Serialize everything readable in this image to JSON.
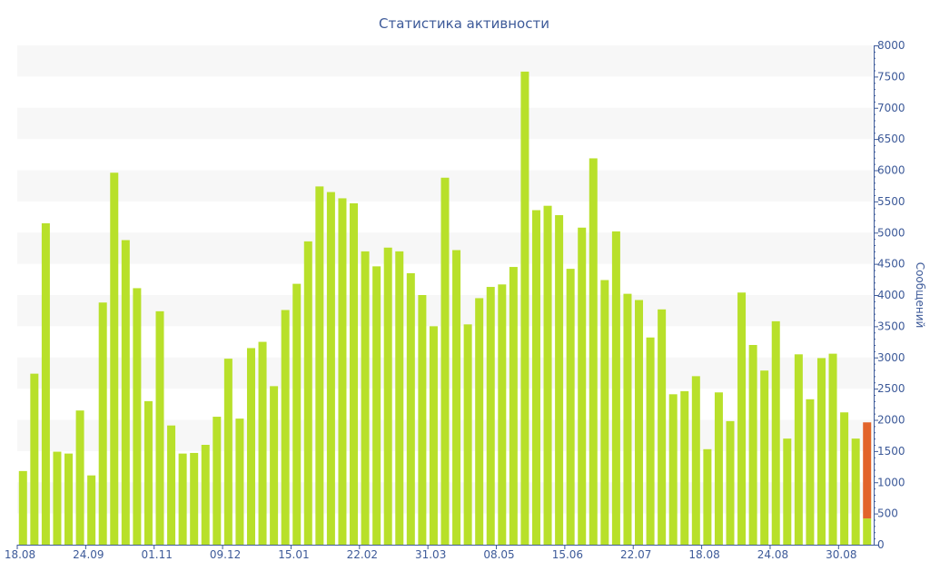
{
  "chart_data": {
    "type": "bar",
    "title": "Статистика активности",
    "ylabel": "Сообщений",
    "xlabel": "",
    "ylim": [
      0,
      8000
    ],
    "yticks": [
      0,
      500,
      1000,
      1500,
      2000,
      2500,
      3000,
      3500,
      4000,
      4500,
      5000,
      5500,
      6000,
      6500,
      7000,
      7500,
      8000
    ],
    "y_axis_position": "right",
    "grid": "alternating horizontal bands",
    "bar_color": "#b8e02a",
    "highlight_color": "#e2632a",
    "band_color": "#f7f7f7",
    "axis_color": "#3d5a99",
    "x_tick_labels": [
      {
        "label": "18.08",
        "index": 0
      },
      {
        "label": "24.09",
        "index": 6
      },
      {
        "label": "01.11",
        "index": 12
      },
      {
        "label": "09.12",
        "index": 18
      },
      {
        "label": "15.01",
        "index": 24
      },
      {
        "label": "22.02",
        "index": 30
      },
      {
        "label": "31.03",
        "index": 36
      },
      {
        "label": "08.05",
        "index": 42
      },
      {
        "label": "15.06",
        "index": 48
      },
      {
        "label": "22.07",
        "index": 54
      },
      {
        "label": "18.08",
        "index": 60
      },
      {
        "label": "24.08",
        "index": 66
      },
      {
        "label": "30.08",
        "index": 72
      }
    ],
    "values": [
      1180,
      2740,
      5150,
      1490,
      1460,
      2150,
      1110,
      3880,
      5960,
      4880,
      4110,
      2300,
      3740,
      1910,
      1460,
      1470,
      1600,
      2050,
      2980,
      2020,
      3150,
      3250,
      2540,
      3760,
      4180,
      4860,
      5740,
      5650,
      5550,
      5470,
      4700,
      4460,
      4760,
      4700,
      4350,
      4000,
      3500,
      5880,
      4720,
      3530,
      3950,
      4130,
      4170,
      4450,
      7580,
      5360,
      5430,
      5280,
      4420,
      5080,
      6190,
      4240,
      5020,
      4020,
      3920,
      3320,
      3770,
      2410,
      2460,
      2700,
      1530,
      2440,
      1980,
      4040,
      3200,
      2790,
      3580,
      1700,
      3050,
      2330,
      2990,
      3060,
      2120,
      1700,
      1960
    ],
    "last_bar_segments": {
      "base": 420,
      "highlight": 1540
    }
  }
}
